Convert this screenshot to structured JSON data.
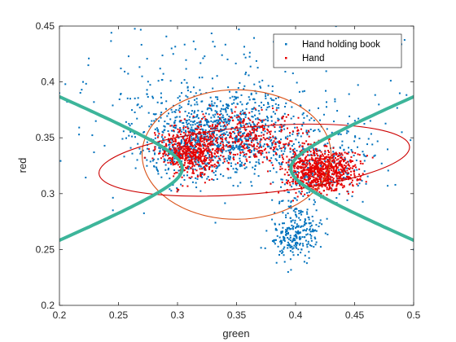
{
  "chart_data": {
    "type": "scatter",
    "title": "",
    "xlabel": "green",
    "ylabel": "red",
    "xlim": [
      0.2,
      0.5
    ],
    "ylim": [
      0.2,
      0.45
    ],
    "xticks": [
      0.2,
      0.25,
      0.3,
      0.35,
      0.4,
      0.45,
      0.5
    ],
    "yticks": [
      0.2,
      0.25,
      0.3,
      0.35,
      0.4,
      0.45
    ],
    "xtick_labels": [
      "0.2",
      "0.25",
      "0.3",
      "0.35",
      "0.4",
      "0.45",
      "0.5"
    ],
    "ytick_labels": [
      "0.2",
      "0.25",
      "0.3",
      "0.35",
      "0.4",
      "0.45"
    ],
    "grid": false,
    "legend_position": "top-right",
    "series": [
      {
        "name": "Hand holding book",
        "color": "#0072BD",
        "marker": "point",
        "clusters": [
          {
            "center": [
              0.34,
              0.355
            ],
            "spread": [
              0.035,
              0.02
            ],
            "count": 900
          },
          {
            "center": [
              0.4,
              0.265
            ],
            "spread": [
              0.01,
              0.012
            ],
            "count": 260
          },
          {
            "center": [
              0.42,
              0.325
            ],
            "spread": [
              0.02,
              0.015
            ],
            "count": 250
          },
          {
            "center": [
              0.31,
              0.34
            ],
            "spread": [
              0.02,
              0.012
            ],
            "count": 200
          },
          {
            "center": [
              0.35,
              0.38
            ],
            "spread": [
              0.08,
              0.04
            ],
            "count": 260
          }
        ],
        "sample_points": [
          [
            0.2,
            0.39
          ],
          [
            0.22,
            0.4
          ],
          [
            0.244,
            0.444
          ],
          [
            0.352,
            0.447
          ],
          [
            0.33,
            0.436
          ],
          [
            0.27,
            0.405
          ],
          [
            0.26,
            0.385
          ],
          [
            0.49,
            0.355
          ],
          [
            0.465,
            0.344
          ],
          [
            0.5,
            0.25
          ],
          [
            0.478,
            0.307
          ],
          [
            0.445,
            0.337
          ],
          [
            0.205,
            0.398
          ],
          [
            0.39,
            0.245
          ],
          [
            0.295,
            0.43
          ]
        ]
      },
      {
        "name": "Hand",
        "color": "#E60000",
        "marker": "point",
        "clusters": [
          {
            "center": [
              0.42,
              0.32
            ],
            "spread": [
              0.015,
              0.01
            ],
            "count": 800
          },
          {
            "center": [
              0.31,
              0.337
            ],
            "spread": [
              0.012,
              0.01
            ],
            "count": 520
          },
          {
            "center": [
              0.355,
              0.35
            ],
            "spread": [
              0.025,
              0.012
            ],
            "count": 380
          }
        ]
      }
    ],
    "curves": [
      {
        "type": "ellipse",
        "color": "#D95319",
        "center": [
          0.35,
          0.335
        ],
        "semi_axes": [
          0.08,
          0.058
        ],
        "angle_deg": 0
      },
      {
        "type": "ellipse",
        "color": "#CC0000",
        "center": [
          0.365,
          0.33
        ],
        "semi_axes": [
          0.132,
          0.03
        ],
        "angle_deg": 5
      },
      {
        "type": "hyperbola",
        "color": "#3DB59A",
        "center": [
          0.35,
          0.3225
        ],
        "vertex_offset": 0.046,
        "asymptote_slope": 0.45
      }
    ]
  }
}
